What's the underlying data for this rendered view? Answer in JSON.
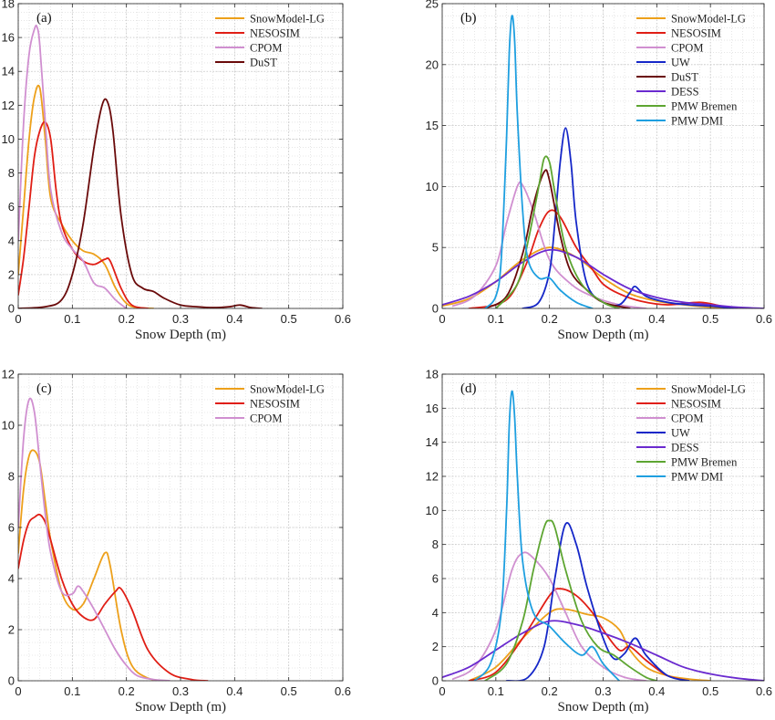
{
  "chart_data": [
    {
      "type": "line",
      "panel_label": "(a)",
      "xlabel": "Snow Depth (m)",
      "ylabel": "",
      "xlim": [
        0,
        0.6
      ],
      "ylim": [
        0,
        18
      ],
      "xticks": [
        0,
        0.1,
        0.2,
        0.3,
        0.4,
        0.5,
        0.6
      ],
      "xtick_labels": [
        "0",
        "0.1",
        "0.2",
        "0.3",
        "0.4",
        "0.5",
        "0.6"
      ],
      "yticks": [
        0,
        2,
        4,
        6,
        8,
        10,
        12,
        14,
        16,
        18
      ],
      "ytick_labels": [
        "0",
        "2",
        "4",
        "6",
        "8",
        "10",
        "12",
        "14",
        "16",
        "18"
      ],
      "grid": true,
      "legend_position": "top-right",
      "series": [
        {
          "name": "SnowModel-LG",
          "color": "#EDA01A",
          "x": [
            0,
            0.01,
            0.02,
            0.03,
            0.04,
            0.05,
            0.06,
            0.08,
            0.1,
            0.12,
            0.14,
            0.16,
            0.18,
            0.2,
            0.22,
            0.25
          ],
          "y": [
            2,
            6,
            10,
            12.5,
            13,
            10,
            6.5,
            5,
            4,
            3.4,
            3.2,
            2.6,
            1.2,
            0.3,
            0.05,
            0
          ]
        },
        {
          "name": "NESOSIM",
          "color": "#E01E15",
          "x": [
            0,
            0.01,
            0.02,
            0.03,
            0.04,
            0.05,
            0.06,
            0.07,
            0.08,
            0.1,
            0.12,
            0.14,
            0.16,
            0.17,
            0.19,
            0.21,
            0.24
          ],
          "y": [
            0.8,
            3,
            6,
            9,
            10.5,
            11,
            10,
            7,
            5,
            3.5,
            2.8,
            2.6,
            2.9,
            2.8,
            1.2,
            0.2,
            0
          ]
        },
        {
          "name": "CPOM",
          "color": "#D08FD0",
          "x": [
            0,
            0.01,
            0.02,
            0.03,
            0.035,
            0.04,
            0.05,
            0.06,
            0.08,
            0.1,
            0.12,
            0.14,
            0.16,
            0.18,
            0.2
          ],
          "y": [
            4,
            11,
            15,
            16.5,
            16.6,
            15.5,
            11,
            7,
            4.5,
            3.5,
            2.8,
            1.5,
            1.2,
            0.5,
            0
          ]
        },
        {
          "name": "DuST",
          "color": "#6A0A0A",
          "x": [
            0,
            0.05,
            0.08,
            0.1,
            0.12,
            0.14,
            0.155,
            0.165,
            0.175,
            0.19,
            0.21,
            0.23,
            0.25,
            0.27,
            0.3,
            0.33,
            0.36,
            0.39,
            0.41,
            0.43,
            0.45
          ],
          "y": [
            0,
            0.1,
            0.5,
            2,
            5,
            9.5,
            12,
            12.2,
            10.5,
            5.5,
            2,
            1.2,
            1,
            0.6,
            0.2,
            0.1,
            0.05,
            0.1,
            0.2,
            0.05,
            0
          ]
        }
      ]
    },
    {
      "type": "line",
      "panel_label": "(b)",
      "xlabel": "Snow Depth (m)",
      "ylabel": "",
      "xlim": [
        0,
        0.6
      ],
      "ylim": [
        0,
        25
      ],
      "xticks": [
        0,
        0.1,
        0.2,
        0.3,
        0.4,
        0.5,
        0.6
      ],
      "xtick_labels": [
        "0",
        "0.1",
        "0.2",
        "0.3",
        "0.4",
        "0.5",
        "0.6"
      ],
      "yticks": [
        0,
        5,
        10,
        15,
        20,
        25
      ],
      "ytick_labels": [
        "0",
        "5",
        "10",
        "15",
        "20",
        "25"
      ],
      "grid": true,
      "legend_position": "top-right",
      "series": [
        {
          "name": "SnowModel-LG",
          "color": "#EDA01A",
          "x": [
            0,
            0.05,
            0.1,
            0.15,
            0.2,
            0.25,
            0.3,
            0.35,
            0.4,
            0.45,
            0.5,
            0.55
          ],
          "y": [
            0.2,
            0.8,
            2.2,
            4,
            5,
            4.2,
            2.5,
            1.2,
            0.6,
            0.3,
            0.1,
            0
          ]
        },
        {
          "name": "NESOSIM",
          "color": "#E01E15",
          "x": [
            0.05,
            0.1,
            0.13,
            0.16,
            0.18,
            0.2,
            0.22,
            0.25,
            0.28,
            0.3,
            0.33,
            0.37,
            0.42,
            0.48,
            0.52,
            0.55
          ],
          "y": [
            0,
            0.3,
            1.2,
            4,
            6.5,
            8,
            7.5,
            5,
            3.2,
            2,
            1.2,
            0.6,
            0.3,
            0.5,
            0.2,
            0
          ]
        },
        {
          "name": "CPOM",
          "color": "#D08FD0",
          "x": [
            0.02,
            0.06,
            0.1,
            0.12,
            0.14,
            0.15,
            0.17,
            0.2,
            0.24,
            0.28,
            0.33,
            0.38
          ],
          "y": [
            0.2,
            1,
            3.5,
            7,
            10,
            10.1,
            8,
            4,
            2,
            1,
            0.3,
            0
          ]
        },
        {
          "name": "UW",
          "color": "#1527C8",
          "x": [
            0.15,
            0.18,
            0.2,
            0.21,
            0.22,
            0.23,
            0.24,
            0.25,
            0.27,
            0.3,
            0.33,
            0.35,
            0.36,
            0.38,
            0.42,
            0.46,
            0.5,
            0.55
          ],
          "y": [
            0,
            0.5,
            3,
            7,
            12,
            14.8,
            12,
            7,
            2,
            0.5,
            0.3,
            1.3,
            1.8,
            1,
            0.5,
            0.3,
            0.2,
            0
          ]
        },
        {
          "name": "DuST",
          "color": "#6A0A0A",
          "x": [
            0.08,
            0.12,
            0.15,
            0.17,
            0.19,
            0.2,
            0.22,
            0.24,
            0.27,
            0.3,
            0.35
          ],
          "y": [
            0,
            1,
            4.5,
            8.5,
            11.2,
            10.5,
            6,
            3,
            1.5,
            0.5,
            0
          ]
        },
        {
          "name": "DESS",
          "color": "#6A2ACF",
          "x": [
            0,
            0.05,
            0.1,
            0.15,
            0.2,
            0.25,
            0.3,
            0.35,
            0.4,
            0.45,
            0.5,
            0.55,
            0.6
          ],
          "y": [
            0.3,
            1,
            2.2,
            3.8,
            4.8,
            4.2,
            2.8,
            1.6,
            0.9,
            0.5,
            0.3,
            0.1,
            0
          ]
        },
        {
          "name": "PMW Bremen",
          "color": "#5DA531",
          "x": [
            0.1,
            0.14,
            0.16,
            0.18,
            0.19,
            0.2,
            0.21,
            0.23,
            0.26,
            0.3,
            0.33
          ],
          "y": [
            0,
            2,
            5.5,
            10,
            12.3,
            12,
            9.5,
            5,
            2,
            0.5,
            0
          ]
        },
        {
          "name": "PMW DMI",
          "color": "#1E9FE0",
          "x": [
            0.08,
            0.1,
            0.11,
            0.12,
            0.125,
            0.13,
            0.135,
            0.14,
            0.15,
            0.16,
            0.18,
            0.2,
            0.22,
            0.25,
            0.28
          ],
          "y": [
            0,
            1,
            4,
            14,
            21,
            24,
            22,
            16,
            8,
            4,
            2.5,
            2.5,
            1.5,
            0.5,
            0
          ]
        }
      ]
    },
    {
      "type": "line",
      "panel_label": "(c)",
      "xlabel": "Snow Depth (m)",
      "ylabel": "",
      "xlim": [
        0,
        0.6
      ],
      "ylim": [
        0,
        12
      ],
      "xticks": [
        0,
        0.1,
        0.2,
        0.3,
        0.4,
        0.5,
        0.6
      ],
      "xtick_labels": [
        "0",
        "0.1",
        "0.2",
        "0.3",
        "0.4",
        "0.5",
        "0.6"
      ],
      "yticks": [
        0,
        2,
        4,
        6,
        8,
        10,
        12
      ],
      "ytick_labels": [
        "0",
        "2",
        "4",
        "6",
        "8",
        "10",
        "12"
      ],
      "grid": true,
      "legend_position": "top-right",
      "series": [
        {
          "name": "SnowModel-LG",
          "color": "#EDA01A",
          "x": [
            0,
            0.01,
            0.02,
            0.03,
            0.04,
            0.05,
            0.06,
            0.08,
            0.1,
            0.12,
            0.14,
            0.16,
            0.17,
            0.19,
            0.21,
            0.24,
            0.27
          ],
          "y": [
            5,
            7.5,
            8.8,
            9,
            8.5,
            7,
            5.5,
            3.5,
            2.8,
            3,
            4,
            5,
            4.5,
            2,
            0.6,
            0.1,
            0
          ]
        },
        {
          "name": "NESOSIM",
          "color": "#E01E15",
          "x": [
            0,
            0.01,
            0.02,
            0.03,
            0.04,
            0.05,
            0.06,
            0.08,
            0.1,
            0.12,
            0.14,
            0.16,
            0.18,
            0.19,
            0.21,
            0.24,
            0.28,
            0.32,
            0.35
          ],
          "y": [
            4.4,
            5.5,
            6.2,
            6.4,
            6.5,
            6.2,
            5.5,
            4,
            3,
            2.5,
            2.4,
            3,
            3.5,
            3.6,
            2.8,
            1.2,
            0.3,
            0.05,
            0
          ]
        },
        {
          "name": "CPOM",
          "color": "#D08FD0",
          "x": [
            0,
            0.01,
            0.02,
            0.03,
            0.04,
            0.05,
            0.06,
            0.08,
            0.1,
            0.11,
            0.12,
            0.14,
            0.16,
            0.18,
            0.2,
            0.22,
            0.25,
            0.28
          ],
          "y": [
            6,
            9.5,
            11,
            10.5,
            8.5,
            6.5,
            5,
            3.5,
            3.4,
            3.7,
            3.5,
            2.8,
            2,
            1.2,
            0.6,
            0.2,
            0.05,
            0
          ]
        }
      ]
    },
    {
      "type": "line",
      "panel_label": "(d)",
      "xlabel": "Snow Depth (m)",
      "ylabel": "",
      "xlim": [
        0,
        0.6
      ],
      "ylim": [
        0,
        18
      ],
      "xticks": [
        0,
        0.1,
        0.2,
        0.3,
        0.4,
        0.5,
        0.6
      ],
      "xtick_labels": [
        "0",
        "0.1",
        "0.2",
        "0.3",
        "0.4",
        "0.5",
        "0.6"
      ],
      "yticks": [
        0,
        2,
        4,
        6,
        8,
        10,
        12,
        14,
        16,
        18
      ],
      "ytick_labels": [
        "0",
        "2",
        "4",
        "6",
        "8",
        "10",
        "12",
        "14",
        "16",
        "18"
      ],
      "grid": true,
      "legend_position": "top-right",
      "series": [
        {
          "name": "SnowModel-LG",
          "color": "#EDA01A",
          "x": [
            0.05,
            0.1,
            0.15,
            0.2,
            0.23,
            0.27,
            0.3,
            0.33,
            0.35,
            0.38,
            0.42,
            0.46,
            0.5
          ],
          "y": [
            0,
            0.8,
            2.5,
            4,
            4.2,
            3.9,
            3.7,
            3,
            1.8,
            0.8,
            0.3,
            0.1,
            0
          ]
        },
        {
          "name": "NESOSIM",
          "color": "#E01E15",
          "x": [
            0.05,
            0.1,
            0.15,
            0.2,
            0.22,
            0.25,
            0.28,
            0.3,
            0.33,
            0.35,
            0.38,
            0.42,
            0.46
          ],
          "y": [
            0,
            0.5,
            2.5,
            5,
            5.4,
            5,
            4,
            3,
            1.8,
            2,
            1.2,
            0.3,
            0
          ]
        },
        {
          "name": "CPOM",
          "color": "#D08FD0",
          "x": [
            0.02,
            0.06,
            0.1,
            0.13,
            0.15,
            0.17,
            0.2,
            0.23,
            0.26,
            0.3,
            0.34,
            0.38
          ],
          "y": [
            0.1,
            0.8,
            3,
            6.5,
            7.5,
            7.2,
            6,
            4,
            2,
            0.8,
            0.2,
            0
          ]
        },
        {
          "name": "UW",
          "color": "#1527C8",
          "x": [
            0.12,
            0.16,
            0.19,
            0.21,
            0.23,
            0.25,
            0.27,
            0.3,
            0.32,
            0.34,
            0.36,
            0.38,
            0.42,
            0.46
          ],
          "y": [
            0,
            0.2,
            2,
            6,
            9.2,
            8,
            5.5,
            2.5,
            1.3,
            1.6,
            2.5,
            1.5,
            0.3,
            0
          ]
        },
        {
          "name": "DESS",
          "color": "#6A2ACF",
          "x": [
            0,
            0.05,
            0.1,
            0.15,
            0.2,
            0.25,
            0.3,
            0.35,
            0.4,
            0.45,
            0.5,
            0.55,
            0.6
          ],
          "y": [
            0.2,
            0.8,
            1.8,
            2.8,
            3.5,
            3.3,
            2.8,
            2.2,
            1.5,
            0.8,
            0.4,
            0.15,
            0
          ]
        },
        {
          "name": "PMW Bremen",
          "color": "#5DA531",
          "x": [
            0.08,
            0.12,
            0.15,
            0.17,
            0.19,
            0.2,
            0.21,
            0.23,
            0.26,
            0.29,
            0.32,
            0.35,
            0.38,
            0.4
          ],
          "y": [
            0,
            1,
            3.5,
            6.5,
            9,
            9.4,
            9,
            6.5,
            3.5,
            2,
            1.5,
            0.8,
            0.2,
            0
          ]
        },
        {
          "name": "PMW DMI",
          "color": "#1E9FE0",
          "x": [
            0.06,
            0.09,
            0.11,
            0.12,
            0.125,
            0.13,
            0.135,
            0.14,
            0.15,
            0.17,
            0.2,
            0.23,
            0.26,
            0.28,
            0.3,
            0.33
          ],
          "y": [
            0,
            1,
            4,
            10,
            15,
            17,
            15.5,
            12,
            7,
            4,
            3.2,
            2.2,
            1.5,
            2,
            1,
            0
          ]
        }
      ]
    }
  ]
}
